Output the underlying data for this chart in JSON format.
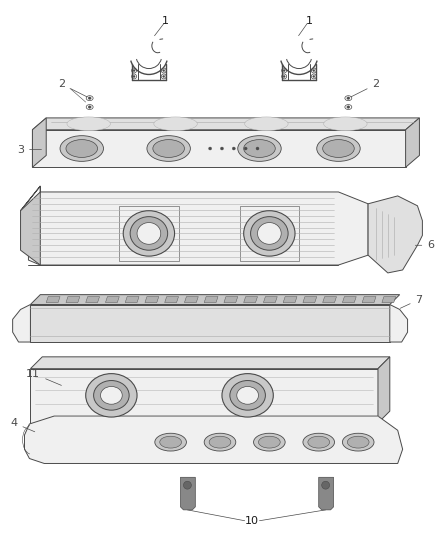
{
  "bg_color": "#ffffff",
  "line_color": "#4a4a4a",
  "fill_light": "#f0f0f0",
  "fill_mid": "#e0e0e0",
  "fill_dark": "#c8c8c8",
  "fill_darker": "#b0b0b0",
  "label_color": "#1a1a1a",
  "fig_width": 4.38,
  "fig_height": 5.33,
  "dpi": 100
}
